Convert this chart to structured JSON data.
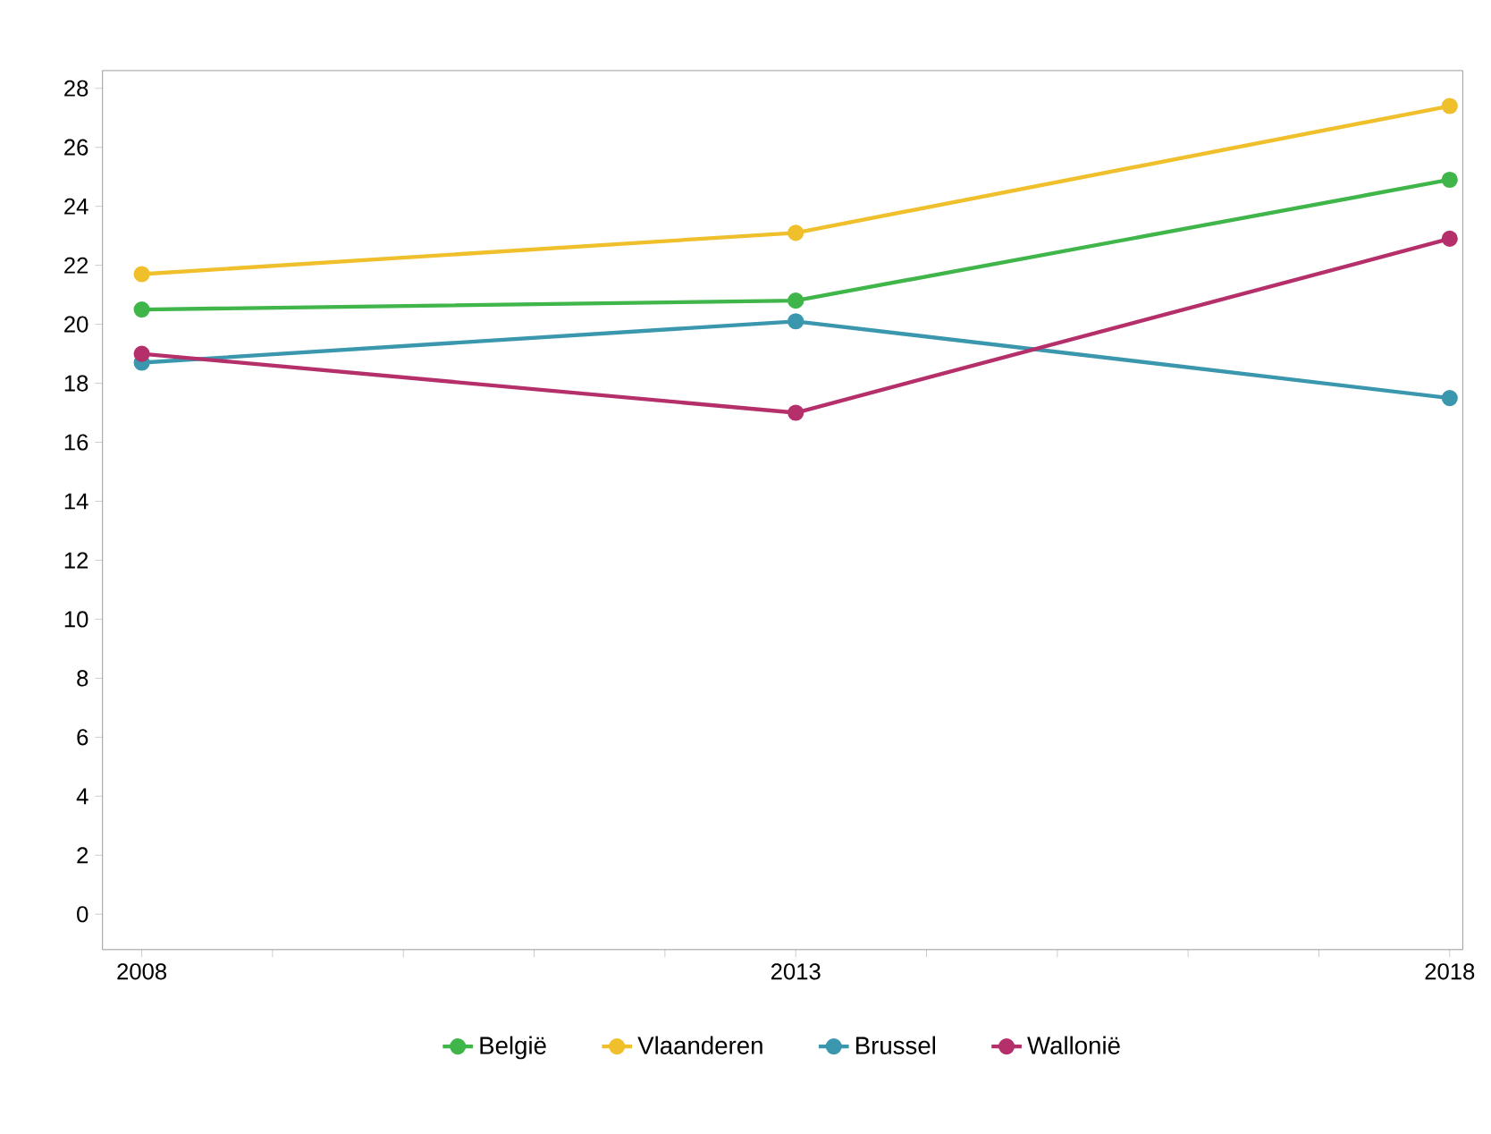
{
  "chart_data": {
    "type": "line",
    "x": [
      2008,
      2013,
      2018
    ],
    "series": [
      {
        "name": "België",
        "color": "#3fb54a",
        "values": [
          20.5,
          20.8,
          24.9
        ]
      },
      {
        "name": "Vlaanderen",
        "color": "#f0bf2c",
        "values": [
          21.7,
          23.1,
          27.4
        ]
      },
      {
        "name": "Brussel",
        "color": "#3a97ad",
        "values": [
          18.7,
          20.1,
          17.5
        ]
      },
      {
        "name": "Wallonië",
        "color": "#b5306a",
        "values": [
          19.0,
          17.0,
          22.9
        ]
      }
    ],
    "xlim": [
      2007.7,
      2018.1
    ],
    "xticks": [
      2008,
      {
        "value": 2009,
        "label": null
      },
      {
        "value": 2010,
        "label": null
      },
      {
        "value": 2011,
        "label": null
      },
      {
        "value": 2012,
        "label": null
      },
      2013,
      {
        "value": 2014,
        "label": null
      },
      {
        "value": 2015,
        "label": null
      },
      {
        "value": 2016,
        "label": null
      },
      {
        "value": 2017,
        "label": null
      },
      2018
    ],
    "ylim": [
      -1.2,
      28.6
    ],
    "yticks": [
      0,
      2,
      4,
      6,
      8,
      10,
      12,
      14,
      16,
      18,
      20,
      22,
      24,
      26,
      28
    ],
    "marker": "circle",
    "line_style": "solid",
    "legend": "bottom",
    "grid": false
  }
}
